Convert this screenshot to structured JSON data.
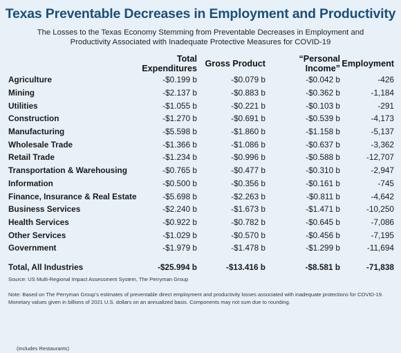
{
  "title": "Texas Preventable Decreases in Employment and Productivity",
  "subtitle_line1": "The Losses to the Texas Economy Stemming from Preventable Decreases in Employment and",
  "subtitle_line2": "Productivity Associated with Inadequate Protective Measures for COVID-19",
  "columns": [
    "Total Expenditures",
    "Gross Product",
    "“Personal Income”",
    "Employment"
  ],
  "rows": [
    {
      "name": "Agriculture",
      "note": "",
      "values": [
        "-$0.199 b",
        "-$0.079 b",
        "-$0.042 b",
        "-426"
      ]
    },
    {
      "name": "Mining",
      "note": "",
      "values": [
        "-$2.137 b",
        "-$0.883 b",
        "-$0.362 b",
        "-1,184"
      ]
    },
    {
      "name": "Utilities",
      "note": "",
      "values": [
        "-$1.055 b",
        "-$0.221 b",
        "-$0.103 b",
        "-291"
      ]
    },
    {
      "name": "Construction",
      "note": "",
      "values": [
        "-$1.270 b",
        "-$0.691 b",
        "-$0.539 b",
        "-4,173"
      ]
    },
    {
      "name": "Manufacturing",
      "note": "",
      "values": [
        "-$5.598 b",
        "-$1.860 b",
        "-$1.158 b",
        "-5,137"
      ]
    },
    {
      "name": "Wholesale Trade",
      "note": "",
      "values": [
        "-$1.366 b",
        "-$1.086 b",
        "-$0.637 b",
        "-3,362"
      ]
    },
    {
      "name": "Retail Trade",
      "note": " (includes Restaurants)",
      "values": [
        "-$1.234 b",
        "-$0.996 b",
        "-$0.588 b",
        "-12,707"
      ]
    },
    {
      "name": "Transportation & Warehousing",
      "note": "",
      "values": [
        "-$0.765 b",
        "-$0.477 b",
        "-$0.310 b",
        "-2,947"
      ]
    },
    {
      "name": "Information",
      "note": "",
      "values": [
        "-$0.500 b",
        "-$0.356 b",
        "-$0.161 b",
        "-745"
      ]
    },
    {
      "name": "Finance, Insurance & Real Estate",
      "note": "",
      "values": [
        "-$5.698 b",
        "-$2.263 b",
        "-$0.811 b",
        "-4,642"
      ]
    },
    {
      "name": "Business Services",
      "note": "",
      "values": [
        "-$2.240 b",
        "-$1.673 b",
        "-$1.471 b",
        "-10,250"
      ]
    },
    {
      "name": "Health Services",
      "note": "",
      "values": [
        "-$0.922 b",
        "-$0.782 b",
        "-$0.645 b",
        "-7,086"
      ]
    },
    {
      "name": "Other Services",
      "note": "",
      "values": [
        "-$1.029 b",
        "-$0.570 b",
        "-$0.456 b",
        "-7,195"
      ]
    },
    {
      "name": "Government",
      "note": "",
      "values": [
        "-$1.979 b",
        "-$1.478 b",
        "-$1.299 b",
        "-11,694"
      ]
    }
  ],
  "total": {
    "name": "Total, All Industries",
    "values": [
      "-$25.994 b",
      "-$13.416 b",
      "-$8.581 b",
      "-71,838"
    ]
  },
  "source": "Source: US Multi-Regional Impact Assessment System, The Perryman Group",
  "note_line1": "Note: Based on The Perryman Group’s estimates of preventable direct employment and productivity losses associated with inadequate protections for COVID-19.",
  "note_line2": "Monetary values given in billions of 2021 U.S. dollars on an annualized basis. Components may not sum due to rounding.",
  "colors": {
    "background": "#e8f1f8",
    "title": "#1a4f7a"
  }
}
